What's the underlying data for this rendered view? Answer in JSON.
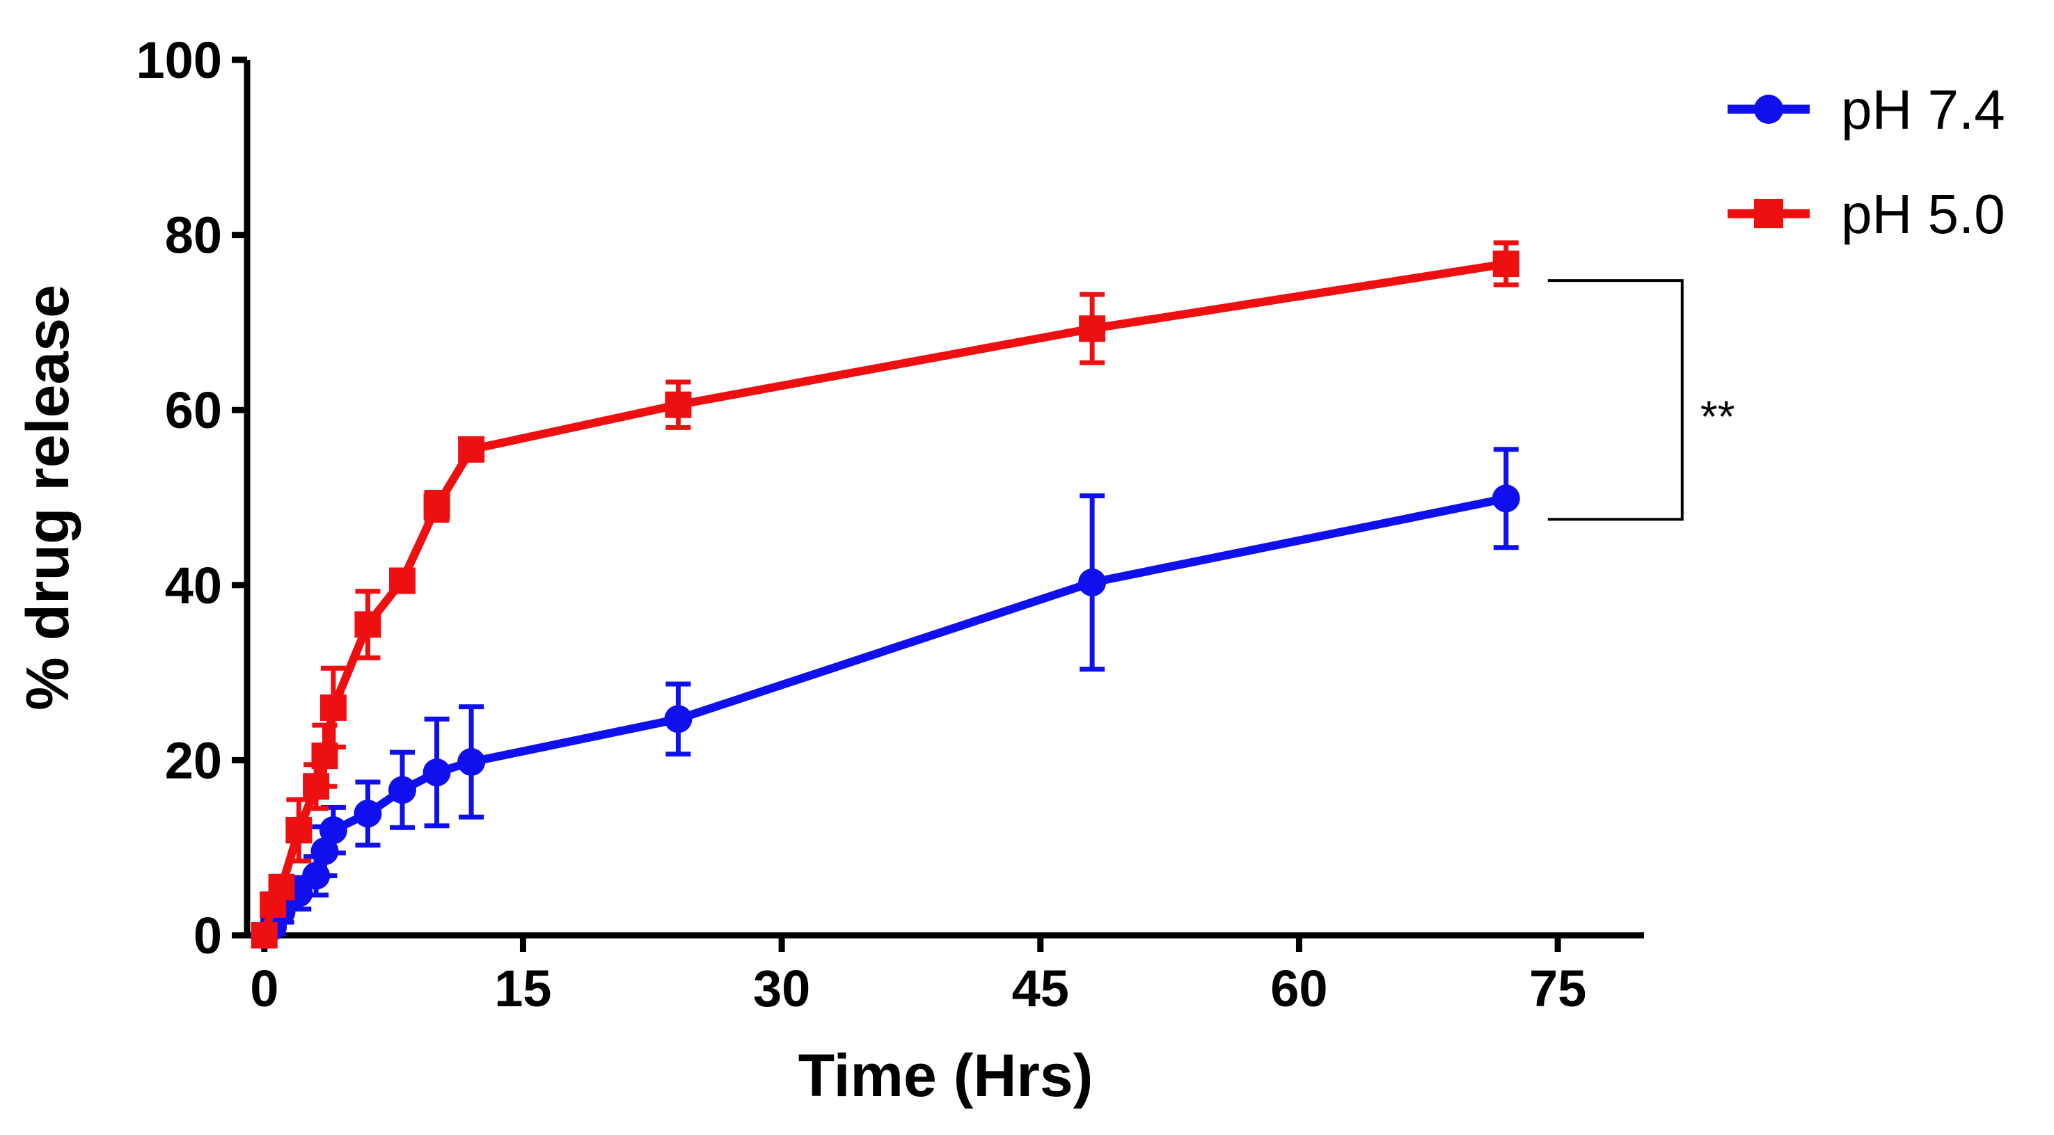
{
  "chart_data": {
    "type": "line",
    "title": "",
    "xlabel": "Time (Hrs)",
    "ylabel": "% drug release",
    "xlim": [
      -1,
      80
    ],
    "ylim": [
      0,
      100
    ],
    "xticks": [
      0,
      15,
      30,
      45,
      60,
      75
    ],
    "yticks": [
      0,
      20,
      40,
      60,
      80,
      100
    ],
    "xtick_labels": [
      "0",
      "15",
      "30",
      "45",
      "60",
      "75"
    ],
    "ytick_labels": [
      "0",
      "20",
      "40",
      "60",
      "80",
      "100"
    ],
    "legend_position": "top-right",
    "series": [
      {
        "name": "pH 7.4",
        "color": "#1010ee",
        "marker": "circle",
        "x": [
          0,
          0.5,
          1,
          2,
          3,
          3.5,
          4,
          6,
          8,
          10,
          12,
          24,
          48,
          72
        ],
        "y": [
          0,
          1,
          2.7,
          4.8,
          6.8,
          9.6,
          12,
          13.9,
          16.6,
          18.6,
          19.8,
          24.7,
          40.3,
          49.9
        ],
        "err": [
          0,
          0.8,
          1.2,
          1.8,
          2.2,
          2.8,
          2.6,
          3.6,
          4.3,
          6.1,
          6.3,
          4.0,
          9.9,
          5.6
        ]
      },
      {
        "name": "pH 5.0",
        "color": "#ee1010",
        "marker": "square",
        "x": [
          0,
          0.5,
          1,
          2,
          3,
          3.5,
          4,
          6,
          8,
          10,
          12,
          24,
          48,
          72
        ],
        "y": [
          0,
          3.5,
          5.5,
          12,
          17,
          20.5,
          26,
          35.5,
          40.5,
          49,
          55.5,
          60.6,
          69.3,
          76.7
        ],
        "err": [
          0,
          1,
          1.2,
          3.5,
          2.5,
          3.5,
          4.5,
          3.8,
          1.2,
          1.6,
          1,
          2.6,
          3.9,
          2.4
        ]
      }
    ],
    "annotations": [
      {
        "text": "**",
        "type": "significance-bracket",
        "between": [
          "pH 5.0",
          "pH 7.4"
        ],
        "at_x": 72
      }
    ]
  }
}
